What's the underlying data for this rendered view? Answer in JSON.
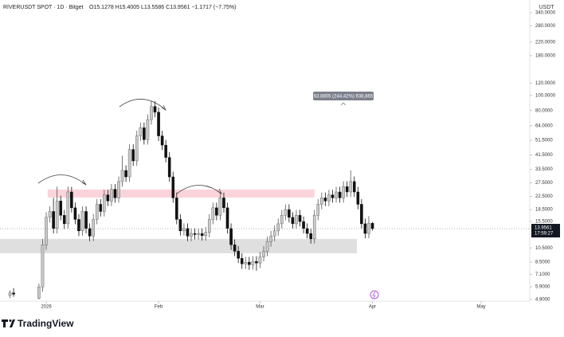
{
  "chart_data": {
    "type": "candlestick",
    "symbol": "RIVERUSDT SPOT · 1D · Bitget",
    "ohlc_text": "O15.1278 H15.4005 L13.5586 C13.9561 −1.1717 (−7.75%)",
    "currency": "USDT",
    "annotation": "63.8805 (244.42%) 638,865",
    "last_price_label": "13.9561",
    "countdown": "17:59:27",
    "brand": "TradingView",
    "log_scale": true,
    "up_color": "#c9c9c9",
    "down_color": "#111111",
    "x": [
      -10,
      -9,
      -2,
      -1,
      0,
      1,
      2,
      3,
      4,
      5,
      6,
      7,
      8,
      9,
      10,
      11,
      12,
      13,
      14,
      15,
      16,
      17,
      18,
      19,
      20,
      21,
      22,
      23,
      24,
      25,
      26,
      27,
      28,
      29,
      30,
      31,
      32,
      33,
      34,
      35,
      36,
      37,
      38,
      39,
      40,
      41,
      42,
      43,
      44,
      45,
      46,
      47,
      48,
      49,
      50,
      51,
      52,
      53,
      54,
      55,
      56,
      57,
      58,
      59,
      60,
      61,
      62,
      63,
      64,
      65,
      66,
      67,
      68,
      69,
      70,
      71,
      72,
      73,
      74,
      75,
      76,
      77,
      78,
      79,
      80,
      81,
      82,
      83,
      84,
      85,
      86,
      87,
      88,
      89,
      90
    ],
    "open": [
      5.2,
      5.4,
      5.0,
      5.9,
      11,
      16.5,
      18,
      14,
      21,
      17,
      15,
      24,
      19,
      16,
      13.5,
      18,
      14,
      12.5,
      16,
      20,
      18,
      23,
      21,
      25,
      22,
      28,
      33,
      30,
      45,
      38,
      55,
      62,
      52,
      70,
      85,
      78,
      55,
      48,
      40,
      30,
      22,
      16,
      13.5,
      14,
      12.5,
      13,
      12.8,
      13,
      12.6,
      13.2,
      16,
      19,
      17,
      22,
      19,
      14,
      11,
      10,
      9,
      8.3,
      8.5,
      8.2,
      8.6,
      8.4,
      9.2,
      10,
      11.5,
      12.5,
      13.5,
      15,
      17,
      18.5,
      16.5,
      15,
      17,
      15.5,
      14,
      13,
      12,
      17,
      20,
      22,
      21,
      23,
      22,
      24,
      22,
      26,
      24,
      28,
      24,
      20,
      15,
      13,
      15.1278
    ],
    "high": [
      5.6,
      5.8,
      6.2,
      12,
      17.8,
      19.4,
      22,
      26,
      22.7,
      18.4,
      26,
      25.9,
      20.5,
      17.3,
      19.4,
      19.4,
      15.1,
      17.3,
      21.6,
      21.6,
      24.8,
      24.8,
      27,
      27,
      30.2,
      41,
      35.6,
      48.6,
      48.6,
      59.4,
      67,
      67,
      75.6,
      92,
      91.8,
      84,
      59.4,
      51.8,
      43.2,
      32.4,
      23.8,
      17.3,
      15.1,
      15.1,
      14,
      14,
      14,
      14,
      14.3,
      17.3,
      20.5,
      20.5,
      24,
      23.8,
      20.5,
      15.1,
      11.9,
      10.8,
      9.7,
      9.2,
      9.2,
      9.3,
      9.3,
      9.9,
      10.8,
      12.4,
      13.5,
      14.6,
      16.2,
      18.4,
      20,
      20,
      17.8,
      18.4,
      18.4,
      16.7,
      15.1,
      14,
      18.4,
      21.6,
      23.8,
      23.8,
      24.8,
      24.8,
      25.9,
      25.9,
      28.1,
      28.1,
      33,
      30.2,
      25.9,
      21.6,
      16.2,
      16.8,
      15.4005
    ],
    "low": [
      5.0,
      5.1,
      4.9,
      5.5,
      10.2,
      15.3,
      13,
      13,
      15.8,
      13.9,
      14,
      17.7,
      14.9,
      12.5,
      12.6,
      13,
      11.6,
      11.6,
      14.9,
      16.7,
      16.7,
      19.5,
      19.5,
      20.5,
      20.5,
      26,
      27.9,
      27.9,
      35.3,
      35.3,
      51,
      48.4,
      48.4,
      65,
      72.5,
      51,
      44.6,
      37.2,
      27.9,
      20.5,
      14.9,
      12.6,
      12.6,
      11.6,
      11.6,
      11.9,
      11.9,
      11.7,
      11.7,
      12.3,
      14.9,
      15.8,
      15.8,
      17.7,
      13,
      10.2,
      9.3,
      8.4,
      7.7,
      7.7,
      7.6,
      7.6,
      7.5,
      7.8,
      8.6,
      9.3,
      10.7,
      11.6,
      12.6,
      14,
      15.8,
      15.3,
      14,
      14,
      14.4,
      13,
      12.1,
      11.2,
      11.2,
      15.8,
      18.6,
      19.5,
      19.5,
      20.5,
      20.5,
      20.5,
      20.5,
      22.3,
      22.3,
      22.3,
      18.6,
      14,
      12.1,
      12.1,
      13.5586
    ],
    "close": [
      5.4,
      5.3,
      5.9,
      11,
      16.5,
      18,
      14,
      21,
      17,
      15,
      24,
      19,
      16,
      13.5,
      18,
      14,
      12.5,
      16,
      20,
      18,
      23,
      21,
      25,
      22,
      28,
      33,
      30,
      45,
      38,
      55,
      62,
      52,
      70,
      85,
      78,
      55,
      48,
      40,
      30,
      22,
      16,
      13.5,
      14,
      12.5,
      13,
      12.8,
      13,
      12.6,
      13.2,
      16,
      19,
      17,
      22,
      19,
      14,
      11,
      10,
      9,
      8.3,
      8.5,
      8.2,
      8.6,
      8.4,
      9.2,
      10,
      11.5,
      12.5,
      13.5,
      15,
      17,
      18.5,
      16.5,
      15,
      17,
      15.5,
      14,
      13,
      12,
      17,
      20,
      22,
      21,
      23,
      22,
      24,
      22,
      26,
      24,
      28,
      24,
      20,
      15,
      13,
      15.1278,
      13.9561
    ],
    "zones": [
      {
        "from": 22.1,
        "to": 24.9,
        "start": 0.4,
        "end": 74,
        "color": "#f9cdd3"
      },
      {
        "from": 9.7,
        "to": 12.0,
        "start": -12.75,
        "end": 85.7,
        "color": "#d9d9d9"
      }
    ],
    "xlim": [
      -12.75,
      133.4
    ],
    "xticks": [
      {
        "value": 0,
        "label": "2026"
      },
      {
        "value": 31,
        "label": "Feb"
      },
      {
        "value": 59,
        "label": "Mar"
      },
      {
        "value": 90,
        "label": "Apr"
      },
      {
        "value": 120,
        "label": "May"
      }
    ],
    "ylim": [
      4.78,
      410
    ],
    "yticks": [
      {
        "value": 340,
        "label": "340.0000"
      },
      {
        "value": 280,
        "label": "280.0000"
      },
      {
        "value": 220,
        "label": "220.0000"
      },
      {
        "value": 180,
        "label": "180.0000"
      },
      {
        "value": 120,
        "label": "120.0000"
      },
      {
        "value": 100,
        "label": "100.0000"
      },
      {
        "value": 80,
        "label": "80.0000"
      },
      {
        "value": 64,
        "label": "64.0000"
      },
      {
        "value": 51.5,
        "label": "51.5000"
      },
      {
        "value": 41.5,
        "label": "41.5000"
      },
      {
        "value": 33.5,
        "label": "33.5000"
      },
      {
        "value": 27.5,
        "label": "27.5000"
      },
      {
        "value": 22.5,
        "label": "22.5000"
      },
      {
        "value": 18.5,
        "label": "18.5000"
      },
      {
        "value": 15.5,
        "label": "15.5000"
      },
      {
        "value": 10.5,
        "label": "10.5000"
      },
      {
        "value": 8.5,
        "label": "8.5000"
      },
      {
        "value": 7.1,
        "label": "7.1000"
      },
      {
        "value": 5.9,
        "label": "5.9000"
      },
      {
        "value": 4.9,
        "label": "4.9000"
      }
    ]
  }
}
